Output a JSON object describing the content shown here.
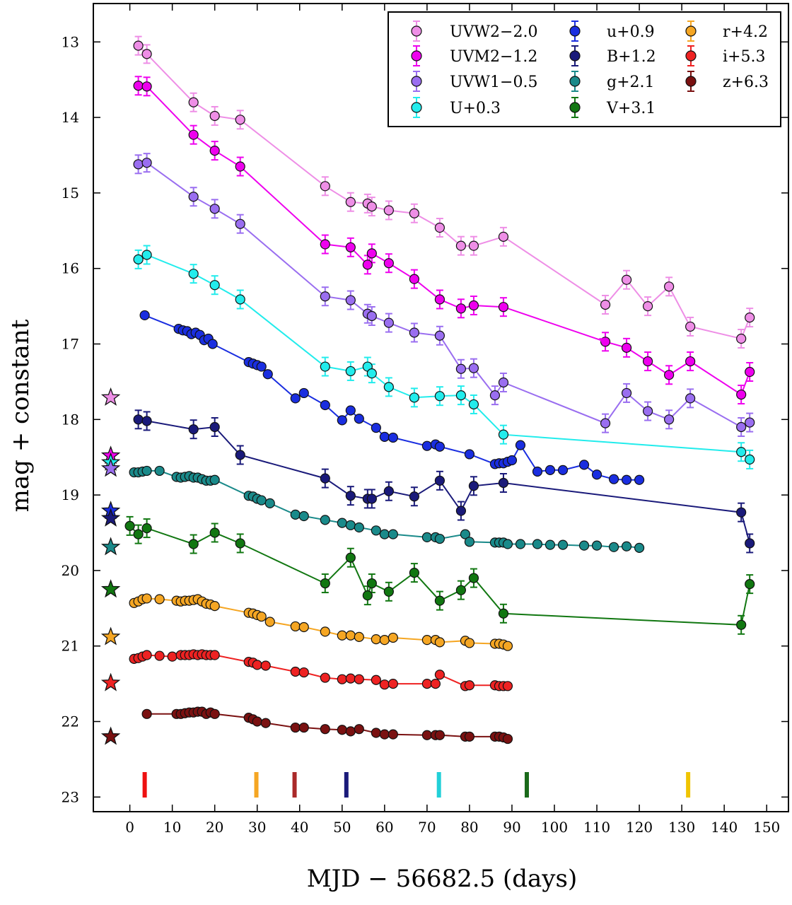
{
  "chart_data": {
    "type": "scatter",
    "xlabel": "MJD − 56682.5 (days)",
    "ylabel": "mag + constant",
    "xlim": [
      -8.5,
      151.5
    ],
    "ylim": [
      23.2,
      12.45
    ],
    "y_inverted": true,
    "grid": false,
    "legend_position": "top-right",
    "xticks": [
      0,
      10,
      20,
      30,
      40,
      50,
      60,
      70,
      80,
      90,
      100,
      110,
      120,
      130,
      140,
      150
    ],
    "yticks": [
      13,
      14,
      15,
      16,
      17,
      18,
      19,
      20,
      21,
      22,
      23
    ],
    "series": [
      {
        "name": "UVW2−2.0",
        "color": "#ee8ee6",
        "x": [
          2,
          4,
          15,
          20,
          26,
          46,
          52,
          56,
          57,
          61,
          67,
          73,
          78,
          81,
          88,
          112,
          117,
          122,
          127,
          132,
          144,
          146
        ],
        "y": [
          13.05,
          13.16,
          13.8,
          13.98,
          14.03,
          14.91,
          15.12,
          15.14,
          15.18,
          15.23,
          15.27,
          15.46,
          15.7,
          15.7,
          15.58,
          16.48,
          16.15,
          16.5,
          16.24,
          16.77,
          16.93,
          16.65
        ]
      },
      {
        "name": "UVM2−1.2",
        "color": "#ee00ee",
        "x": [
          2,
          4,
          15,
          20,
          26,
          46,
          52,
          56,
          57,
          61,
          67,
          73,
          78,
          81,
          88,
          112,
          117,
          122,
          127,
          132,
          144,
          146
        ],
        "y": [
          13.58,
          13.59,
          14.23,
          14.44,
          14.65,
          15.68,
          15.72,
          15.95,
          15.8,
          15.93,
          16.14,
          16.41,
          16.53,
          16.49,
          16.51,
          16.97,
          17.05,
          17.23,
          17.41,
          17.23,
          17.67,
          17.37
        ]
      },
      {
        "name": "UVW1−0.5",
        "color": "#9a6ef0",
        "x": [
          2,
          4,
          15,
          20,
          26,
          46,
          52,
          56,
          57,
          61,
          67,
          73,
          78,
          81,
          86,
          88,
          112,
          117,
          122,
          127,
          132,
          144,
          146
        ],
        "y": [
          14.62,
          14.6,
          15.05,
          15.21,
          15.41,
          16.37,
          16.42,
          16.6,
          16.63,
          16.72,
          16.85,
          16.89,
          17.33,
          17.32,
          17.68,
          17.51,
          18.05,
          17.65,
          17.89,
          18.0,
          17.72,
          18.1,
          18.04
        ]
      },
      {
        "name": "U+0.3",
        "color": "#22ecec",
        "x": [
          2,
          4,
          15,
          20,
          26,
          46,
          52,
          56,
          57,
          61,
          67,
          73,
          78,
          81,
          88,
          144,
          146
        ],
        "y": [
          15.88,
          15.82,
          16.07,
          16.22,
          16.41,
          17.3,
          17.36,
          17.3,
          17.39,
          17.57,
          17.71,
          17.69,
          17.68,
          17.8,
          18.2,
          18.43,
          18.53
        ]
      },
      {
        "name": "u+0.9",
        "color": "#1a2ee0",
        "x": [
          3.5,
          11.5,
          12.5,
          13.5,
          14.5,
          15.5,
          16.5,
          17.5,
          18.5,
          19.5,
          28,
          29,
          30,
          31,
          32.5,
          39,
          41,
          46,
          50,
          52,
          54,
          58,
          60,
          62,
          70,
          72,
          73,
          80,
          86,
          87,
          88,
          89,
          90,
          92,
          96,
          99,
          102,
          107,
          110,
          114,
          117,
          120
        ],
        "y": [
          16.62,
          16.8,
          16.82,
          16.83,
          16.87,
          16.85,
          16.88,
          16.95,
          16.93,
          17.0,
          17.24,
          17.26,
          17.28,
          17.3,
          17.4,
          17.72,
          17.65,
          17.81,
          18.01,
          17.88,
          17.99,
          18.11,
          18.23,
          18.24,
          18.35,
          18.33,
          18.36,
          18.46,
          18.59,
          18.58,
          18.58,
          18.56,
          18.54,
          18.34,
          18.69,
          18.67,
          18.67,
          18.6,
          18.73,
          18.79,
          18.8,
          18.8
        ]
      },
      {
        "name": "B+1.2",
        "color": "#1a1a7a",
        "x": [
          2,
          4,
          15,
          20,
          26,
          46,
          52,
          56,
          57,
          61,
          67,
          73,
          78,
          81,
          88,
          144,
          146
        ],
        "y": [
          18.0,
          18.02,
          18.13,
          18.1,
          18.47,
          18.78,
          19.01,
          19.05,
          19.05,
          18.95,
          19.02,
          18.81,
          19.21,
          18.88,
          18.84,
          19.23,
          19.64
        ]
      },
      {
        "name": "g+2.1",
        "color": "#1a8a8a",
        "x": [
          1,
          2,
          3,
          4,
          7,
          11,
          12,
          13,
          14,
          15,
          16,
          17,
          18,
          19,
          20,
          28,
          29,
          30,
          31,
          33,
          39,
          41,
          46,
          50,
          52,
          54,
          58,
          60,
          62,
          70,
          72,
          73,
          79,
          80,
          86,
          87,
          88,
          89,
          92,
          96,
          99,
          102,
          107,
          110,
          114,
          117,
          120
        ],
        "y": [
          18.7,
          18.7,
          18.69,
          18.68,
          18.68,
          18.76,
          18.77,
          18.76,
          18.75,
          18.77,
          18.77,
          18.79,
          18.81,
          18.81,
          18.8,
          19.01,
          19.02,
          19.05,
          19.07,
          19.11,
          19.26,
          19.28,
          19.33,
          19.37,
          19.4,
          19.43,
          19.47,
          19.52,
          19.52,
          19.56,
          19.56,
          19.58,
          19.52,
          19.62,
          19.63,
          19.63,
          19.63,
          19.65,
          19.65,
          19.65,
          19.66,
          19.66,
          19.67,
          19.67,
          19.69,
          19.68,
          19.7
        ]
      },
      {
        "name": "V+3.1",
        "color": "#117711",
        "x": [
          0,
          2,
          4,
          15,
          20,
          26,
          46,
          52,
          56,
          57,
          61,
          67,
          73,
          78,
          81,
          88,
          144,
          146
        ],
        "y": [
          19.41,
          19.52,
          19.44,
          19.65,
          19.5,
          19.64,
          20.17,
          19.83,
          20.33,
          20.17,
          20.28,
          20.03,
          20.4,
          20.26,
          20.1,
          20.57,
          20.72,
          20.18
        ]
      },
      {
        "name": "r+4.2",
        "color": "#f5a623",
        "x": [
          1,
          2,
          3,
          4,
          7,
          11,
          12,
          13,
          14,
          15,
          16,
          17,
          18,
          19,
          20,
          28,
          29,
          30,
          31,
          33,
          39,
          41,
          46,
          50,
          52,
          54,
          58,
          60,
          62,
          70,
          72,
          73,
          79,
          80,
          86,
          87,
          88,
          89
        ],
        "y": [
          20.43,
          20.41,
          20.38,
          20.37,
          20.38,
          20.4,
          20.41,
          20.4,
          20.4,
          20.39,
          20.38,
          20.41,
          20.44,
          20.45,
          20.47,
          20.56,
          20.57,
          20.59,
          20.61,
          20.68,
          20.74,
          20.75,
          20.81,
          20.86,
          20.86,
          20.88,
          20.91,
          20.92,
          20.89,
          20.92,
          20.92,
          20.95,
          20.93,
          20.96,
          20.97,
          20.97,
          20.98,
          21.0
        ]
      },
      {
        "name": "i+5.3",
        "color": "#ee2222",
        "x": [
          1,
          2,
          3,
          4,
          7,
          10,
          12,
          13,
          14,
          15,
          16,
          17,
          18,
          19,
          20,
          28,
          29,
          30,
          32,
          39,
          41,
          46,
          50,
          52,
          54,
          58,
          60,
          62,
          70,
          72,
          73,
          79,
          80,
          86,
          87,
          88,
          89
        ],
        "y": [
          21.17,
          21.16,
          21.14,
          21.12,
          21.13,
          21.14,
          21.12,
          21.12,
          21.12,
          21.11,
          21.12,
          21.11,
          21.12,
          21.12,
          21.12,
          21.21,
          21.22,
          21.25,
          21.26,
          21.34,
          21.35,
          21.42,
          21.44,
          21.43,
          21.44,
          21.45,
          21.51,
          21.5,
          21.5,
          21.5,
          21.38,
          21.53,
          21.52,
          21.52,
          21.53,
          21.53,
          21.53
        ]
      },
      {
        "name": "z+6.3",
        "color": "#7a1111",
        "x": [
          4,
          11,
          12,
          13,
          14,
          15,
          16,
          17,
          18,
          19,
          20,
          28,
          29,
          30,
          32,
          39,
          41,
          46,
          50,
          52,
          54,
          58,
          60,
          62,
          70,
          72,
          73,
          79,
          80,
          86,
          87,
          88,
          89
        ],
        "y": [
          21.9,
          21.9,
          21.9,
          21.89,
          21.88,
          21.88,
          21.87,
          21.87,
          21.9,
          21.88,
          21.9,
          21.95,
          21.97,
          22.0,
          22.02,
          22.08,
          22.08,
          22.1,
          22.11,
          22.13,
          22.1,
          22.15,
          22.17,
          22.17,
          22.18,
          22.18,
          22.18,
          22.2,
          22.2,
          22.2,
          22.2,
          22.21,
          22.23
        ]
      }
    ],
    "upper_limits": [
      {
        "series": "UVM2−1.2",
        "x": 111.5,
        "y": 16.97,
        "color": "#ee00ee"
      }
    ],
    "reference_stars": {
      "x": -4.5,
      "points": [
        {
          "y": 17.71,
          "color": "#ee8ee6"
        },
        {
          "y": 18.48,
          "color": "#ee00ee"
        },
        {
          "y": 18.57,
          "color": "#22ecec"
        },
        {
          "y": 18.65,
          "color": "#9a6ef0"
        },
        {
          "y": 19.21,
          "color": "#1a2ee0"
        },
        {
          "y": 19.31,
          "color": "#1a1a7a"
        },
        {
          "y": 19.69,
          "color": "#1a8a8a"
        },
        {
          "y": 20.25,
          "color": "#117711"
        },
        {
          "y": 20.88,
          "color": "#f5a623"
        },
        {
          "y": 21.49,
          "color": "#ee2222"
        },
        {
          "y": 22.2,
          "color": "#7a1111"
        }
      ]
    },
    "markers": [
      {
        "x": 3.5,
        "color": "#ee1111"
      },
      {
        "x": 29.8,
        "color": "#f5a623"
      },
      {
        "x": 38.8,
        "color": "#aa2a2a"
      },
      {
        "x": 51.0,
        "color": "#1a1a7a"
      },
      {
        "x": 72.8,
        "color": "#22d0d8"
      },
      {
        "x": 93.5,
        "color": "#1a6a1a"
      },
      {
        "x": 131.5,
        "color": "#f0c400"
      }
    ]
  }
}
